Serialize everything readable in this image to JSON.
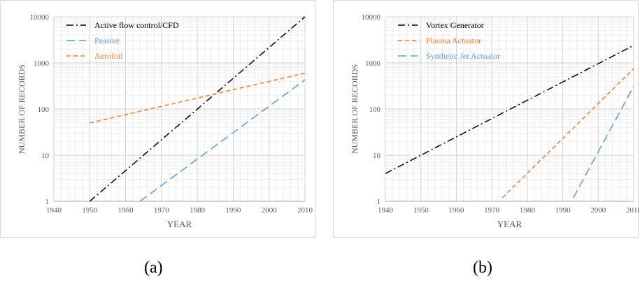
{
  "captions": {
    "a": "(a)",
    "b": "(b)"
  },
  "chart_data": [
    {
      "type": "line",
      "panel": "a",
      "xlabel": "YEAR",
      "ylabel": "NUMBER OF RECORDS",
      "xlim": [
        1940,
        2010
      ],
      "ylim": [
        1,
        10000
      ],
      "yscale": "log",
      "xticks": [
        1940,
        1950,
        1960,
        1970,
        1980,
        1990,
        2000,
        2010
      ],
      "yticks": [
        1,
        10,
        100,
        1000,
        10000
      ],
      "grid": true,
      "legend": "top-left",
      "series": [
        {
          "name": "Active flow control/CFD",
          "color": "#000000",
          "dash": "dashdot",
          "x": [
            1950,
            2010
          ],
          "y": [
            1,
            10000
          ]
        },
        {
          "name": "Passive",
          "color": "#5B9BD5",
          "dash": "longdash",
          "x": [
            1964,
            2010
          ],
          "y": [
            1,
            430
          ]
        },
        {
          "name": "Aerofoil",
          "color": "#ED7D31",
          "dash": "dash",
          "x": [
            1950,
            2010
          ],
          "y": [
            50,
            600
          ]
        }
      ]
    },
    {
      "type": "line",
      "panel": "b",
      "xlabel": "YEAR",
      "ylabel": "NUMBER OF RECORDS",
      "xlim": [
        1940,
        2010
      ],
      "ylim": [
        1,
        10000
      ],
      "yscale": "log",
      "xticks": [
        1940,
        1950,
        1960,
        1970,
        1980,
        1990,
        2000,
        2010
      ],
      "yticks": [
        1,
        10,
        100,
        1000,
        10000
      ],
      "grid": true,
      "legend": "top-left",
      "series": [
        {
          "name": "Vortex Generator",
          "color": "#000000",
          "dash": "dashdot",
          "x": [
            1940,
            2010
          ],
          "y": [
            4,
            2400
          ]
        },
        {
          "name": "Plasma Actuator",
          "color": "#ED7D31",
          "dash": "dash",
          "x": [
            1973,
            2010
          ],
          "y": [
            1.2,
            750
          ]
        },
        {
          "name": "Synthetic Jet Actuator",
          "color": "#5B9BD5",
          "dash": "longdash",
          "x": [
            1993,
            2010
          ],
          "y": [
            1.2,
            310
          ]
        }
      ]
    }
  ]
}
